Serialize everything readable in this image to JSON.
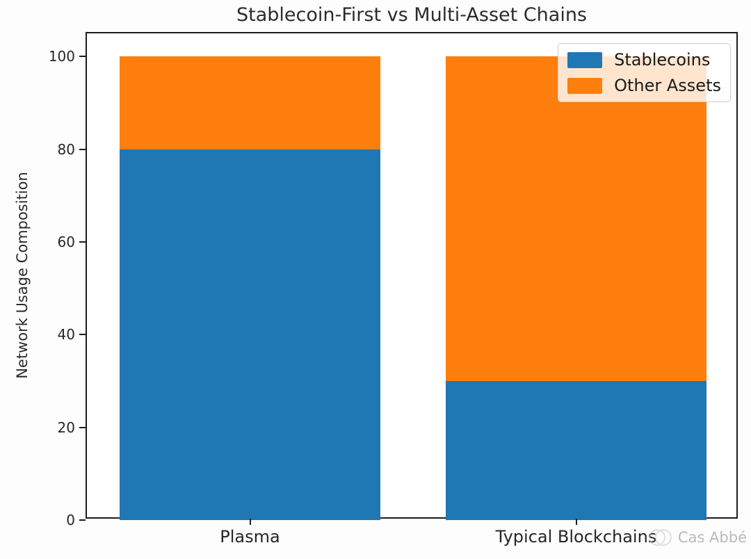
{
  "title": "Stablecoin-First vs Multi-Asset Chains",
  "watermark": {
    "name": "Cas Abbé"
  },
  "chart_data": {
    "type": "bar",
    "stacked": true,
    "title": "Stablecoin-First vs Multi-Asset Chains",
    "categories": [
      "Plasma",
      "Typical Blockchains"
    ],
    "series": [
      {
        "name": "Stablecoins",
        "color": "#1f77b4",
        "values": [
          80,
          30
        ]
      },
      {
        "name": "Other Assets",
        "color": "#ff7f0e",
        "values": [
          20,
          70
        ]
      }
    ],
    "xlabel": "",
    "ylabel": "Network Usage Composition",
    "ylim": [
      0,
      105
    ],
    "yticks": [
      0,
      20,
      40,
      60,
      80,
      100
    ],
    "bar_width_fraction": 0.4,
    "grid": false,
    "legend_position": "upper right",
    "axis_color": "#1c1c1c",
    "tick_label_color": "#262626"
  }
}
